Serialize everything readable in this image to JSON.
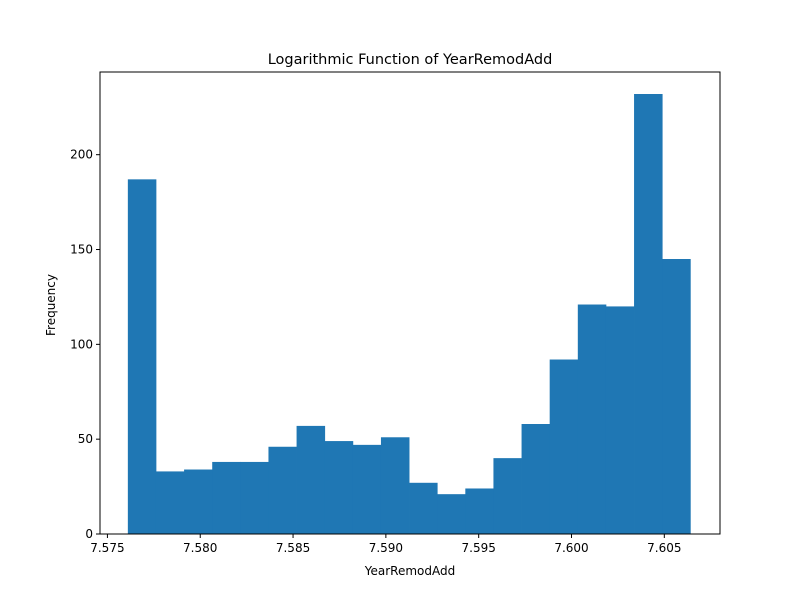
{
  "chart_data": {
    "type": "bar",
    "subtype": "histogram",
    "title": "Logarithmic Function of YearRemodAdd",
    "xlabel": "YearRemodAdd",
    "ylabel": "Frequency",
    "xlim": [
      7.5746,
      7.608
    ],
    "ylim": [
      0,
      243.6
    ],
    "xticks": [
      7.575,
      7.58,
      7.585,
      7.59,
      7.595,
      7.6,
      7.605
    ],
    "xtick_labels": [
      "7.575",
      "7.580",
      "7.585",
      "7.590",
      "7.595",
      "7.600",
      "7.605"
    ],
    "yticks": [
      0,
      50,
      100,
      150,
      200
    ],
    "ytick_labels": [
      "0",
      "50",
      "100",
      "150",
      "200"
    ],
    "bin_start": 7.5761,
    "bin_end": 7.6064,
    "values": [
      187,
      33,
      34,
      38,
      38,
      46,
      57,
      49,
      47,
      51,
      27,
      21,
      24,
      40,
      58,
      92,
      121,
      120,
      232,
      145
    ],
    "bar_color": "#1f77b4",
    "grid": false,
    "legend": false
  }
}
